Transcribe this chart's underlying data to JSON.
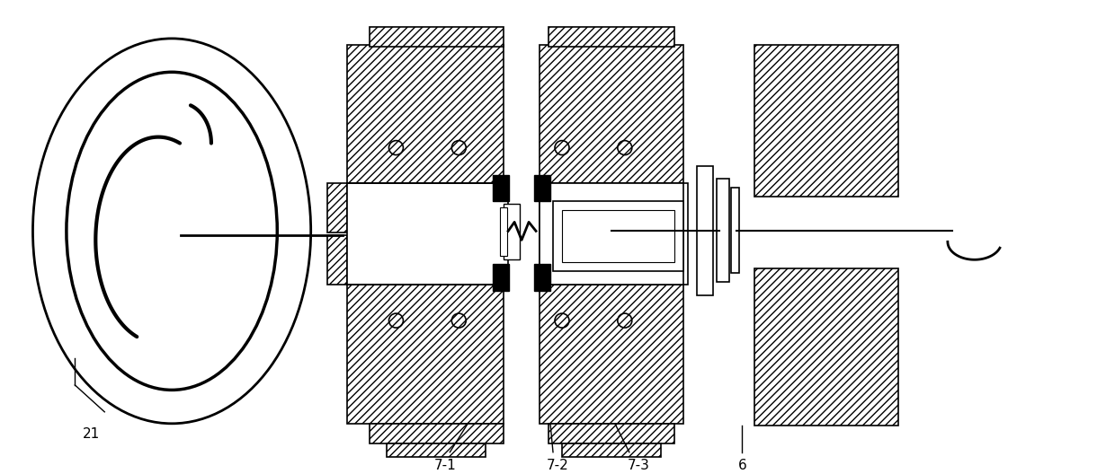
{
  "bg_color": "#ffffff",
  "fig_width": 12.4,
  "fig_height": 5.28,
  "dpi": 100
}
